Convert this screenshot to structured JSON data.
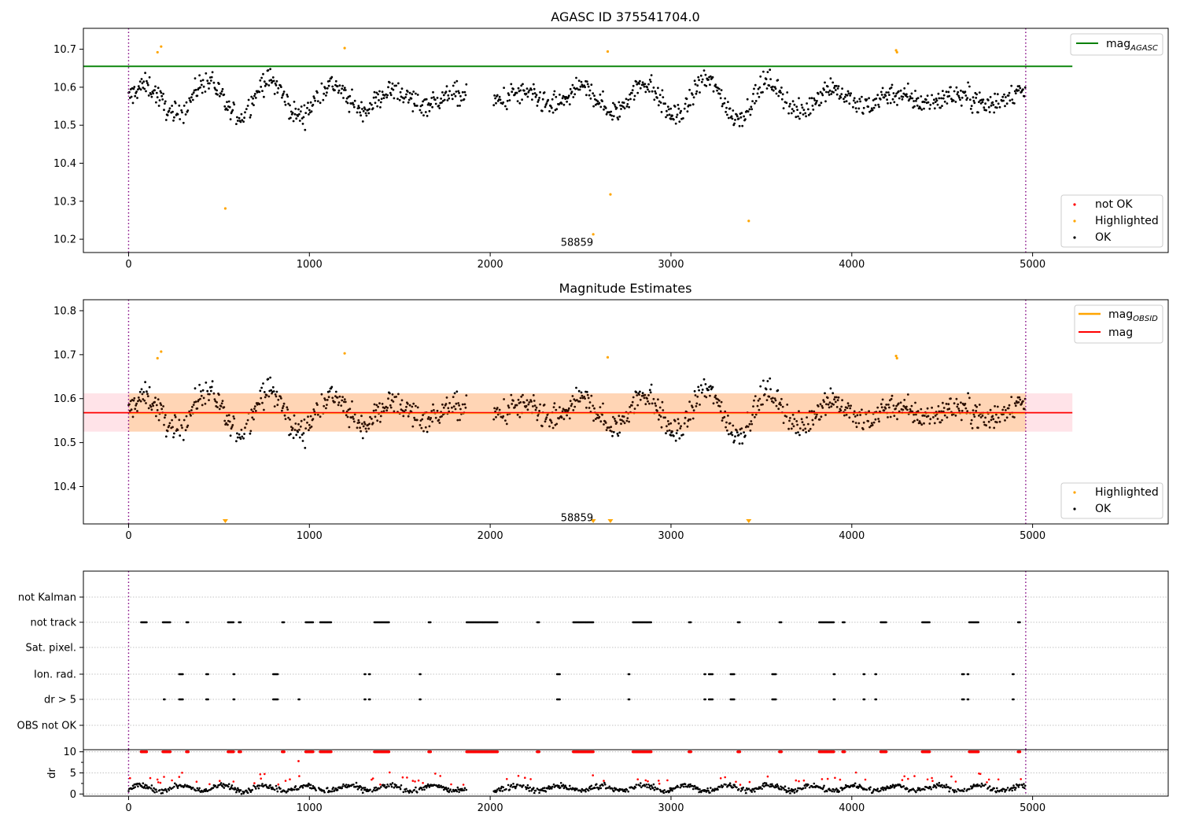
{
  "chart_data": [
    {
      "type": "scatter",
      "title": "AGASC ID 375541704.0",
      "xlim": [
        -250,
        5750
      ],
      "ylim": [
        10.165,
        10.755
      ],
      "xticks": [
        "0",
        "1000",
        "2000",
        "3000",
        "4000",
        "5000"
      ],
      "xtick_values": [
        0,
        1000,
        2000,
        3000,
        4000,
        5000
      ],
      "yticks": [
        "10.2",
        "10.3",
        "10.4",
        "10.5",
        "10.6",
        "10.7"
      ],
      "ytick_values": [
        10.2,
        10.3,
        10.4,
        10.5,
        10.6,
        10.7
      ],
      "hline": {
        "label": "mag",
        "sub": "AGASC",
        "value": 10.655,
        "xmin": -250,
        "xmax": 5220,
        "color": "#008000"
      },
      "vlines": [
        0,
        4962
      ],
      "annotation": {
        "text": "58859",
        "x": 2480,
        "y": 10.193
      },
      "legend_lines": [
        {
          "label": "mag",
          "sub": "AGASC",
          "color": "#008000"
        }
      ],
      "legend_points": [
        {
          "label": "not OK",
          "color": "#ff0000"
        },
        {
          "label": "Highlighted",
          "color": "#ffa500"
        },
        {
          "label": "OK",
          "color": "#000000"
        }
      ],
      "highlighted": [
        [
          160,
          10.692
        ],
        [
          180,
          10.707
        ],
        [
          1195,
          10.703
        ],
        [
          2650,
          10.694
        ],
        [
          4245,
          10.697
        ],
        [
          4250,
          10.692
        ],
        [
          535,
          10.281
        ],
        [
          2570,
          10.213
        ],
        [
          2665,
          10.318
        ],
        [
          3430,
          10.248
        ]
      ],
      "segments": [
        [
          0,
          1870
        ],
        [
          2020,
          3005
        ],
        [
          2995,
          4962
        ]
      ],
      "ok_series": {
        "base": 10.57,
        "amplitude": 0.05,
        "noise": 0.03,
        "step": 4
      }
    },
    {
      "type": "scatter",
      "title": "Magnitude Estimates",
      "xlim": [
        -250,
        5750
      ],
      "ylim": [
        10.315,
        10.825
      ],
      "xticks": [
        "0",
        "1000",
        "2000",
        "3000",
        "4000",
        "5000"
      ],
      "xtick_values": [
        0,
        1000,
        2000,
        3000,
        4000,
        5000
      ],
      "yticks": [
        "10.4",
        "10.5",
        "10.6",
        "10.7",
        "10.8"
      ],
      "ytick_values": [
        10.4,
        10.5,
        10.6,
        10.7,
        10.8
      ],
      "hline": {
        "label": "mag",
        "value": 10.568,
        "xmin": -250,
        "xmax": 5220,
        "color": "#ff0000"
      },
      "band": {
        "ymin": 10.525,
        "ymax": 10.612,
        "xmin": -250,
        "xmax": 5220,
        "inner_xmin": 0,
        "inner_xmax": 4962
      },
      "vlines": [
        0,
        4962
      ],
      "annotation": {
        "text": "58859",
        "x": 2480,
        "y": 10.33
      },
      "legend_lines": [
        {
          "label": "mag",
          "sub": "OBSID",
          "color": "#ffa500"
        },
        {
          "label": "mag",
          "color": "#ff0000"
        }
      ],
      "legend_points": [
        {
          "label": "Highlighted",
          "color": "#ffa500"
        },
        {
          "label": "OK",
          "color": "#000000"
        }
      ],
      "highlighted": [
        [
          160,
          10.692
        ],
        [
          180,
          10.707
        ],
        [
          1195,
          10.703
        ],
        [
          2650,
          10.694
        ],
        [
          4245,
          10.697
        ],
        [
          4250,
          10.692
        ]
      ],
      "offscale_markers": [
        535,
        2570,
        2665,
        3430
      ],
      "segments": [
        [
          0,
          1870
        ],
        [
          2020,
          3005
        ],
        [
          2995,
          4962
        ]
      ],
      "ok_series": {
        "base": 10.57,
        "amplitude": 0.05,
        "noise": 0.03,
        "step": 4
      }
    },
    {
      "type": "scatter",
      "title": "",
      "xlim": [
        -250,
        5750
      ],
      "flag_rows": [
        "not Kalman",
        "not track",
        "Sat. pixel.",
        "Ion. rad.",
        "dr > 5",
        "OBS not OK"
      ],
      "flags": {
        "not track": [
          [
            70,
            100
          ],
          [
            190,
            230
          ],
          [
            320,
            330
          ],
          [
            550,
            580
          ],
          [
            610,
            620
          ],
          [
            850,
            860
          ],
          [
            980,
            1020
          ],
          [
            1060,
            1120
          ],
          [
            1360,
            1440
          ],
          [
            1660,
            1670
          ],
          [
            1870,
            2040
          ],
          [
            2260,
            2270
          ],
          [
            2460,
            2570
          ],
          [
            2790,
            2890
          ],
          [
            3100,
            3110
          ],
          [
            3370,
            3380
          ],
          [
            3600,
            3610
          ],
          [
            3820,
            3900
          ],
          [
            3950,
            3960
          ],
          [
            4160,
            4190
          ],
          [
            4390,
            4430
          ],
          [
            4650,
            4700
          ],
          [
            4920,
            4930
          ]
        ],
        "Ion. rad.": [
          [
            280,
            300
          ],
          [
            430,
            440
          ],
          [
            580,
            585
          ],
          [
            800,
            825
          ],
          [
            1305,
            1310
          ],
          [
            1330,
            1335
          ],
          [
            1610,
            1615
          ],
          [
            2370,
            2385
          ],
          [
            2765,
            2770
          ],
          [
            3185,
            3190
          ],
          [
            3210,
            3230
          ],
          [
            3330,
            3350
          ],
          [
            3560,
            3580
          ],
          [
            3900,
            3905
          ],
          [
            4065,
            4070
          ],
          [
            4130,
            4135
          ],
          [
            4610,
            4620
          ],
          [
            4640,
            4645
          ],
          [
            4890,
            4895
          ]
        ],
        "dr > 5": [
          [
            195,
            200
          ],
          [
            280,
            300
          ],
          [
            430,
            440
          ],
          [
            580,
            585
          ],
          [
            800,
            825
          ],
          [
            940,
            945
          ],
          [
            1305,
            1310
          ],
          [
            1330,
            1335
          ],
          [
            1610,
            1615
          ],
          [
            2370,
            2385
          ],
          [
            2765,
            2770
          ],
          [
            3185,
            3190
          ],
          [
            3210,
            3230
          ],
          [
            3330,
            3350
          ],
          [
            3560,
            3580
          ],
          [
            3900,
            3905
          ],
          [
            4065,
            4070
          ],
          [
            4130,
            4135
          ],
          [
            4610,
            4620
          ],
          [
            4640,
            4645
          ],
          [
            4890,
            4895
          ]
        ]
      }
    },
    {
      "type": "scatter",
      "title": "",
      "ylabel": "dr",
      "xlim": [
        -250,
        5750
      ],
      "ylim": [
        -0.5,
        10.5
      ],
      "yticks": [
        "0",
        "5",
        "10"
      ],
      "ytick_values": [
        0,
        5,
        10
      ],
      "xticks": [
        "0",
        "1000",
        "2000",
        "3000",
        "4000",
        "5000"
      ],
      "xtick_values": [
        0,
        1000,
        2000,
        3000,
        4000,
        5000
      ],
      "vlines": [
        0,
        4962
      ],
      "capped_value": 10,
      "outlier": [
        940,
        7.8
      ]
    }
  ]
}
